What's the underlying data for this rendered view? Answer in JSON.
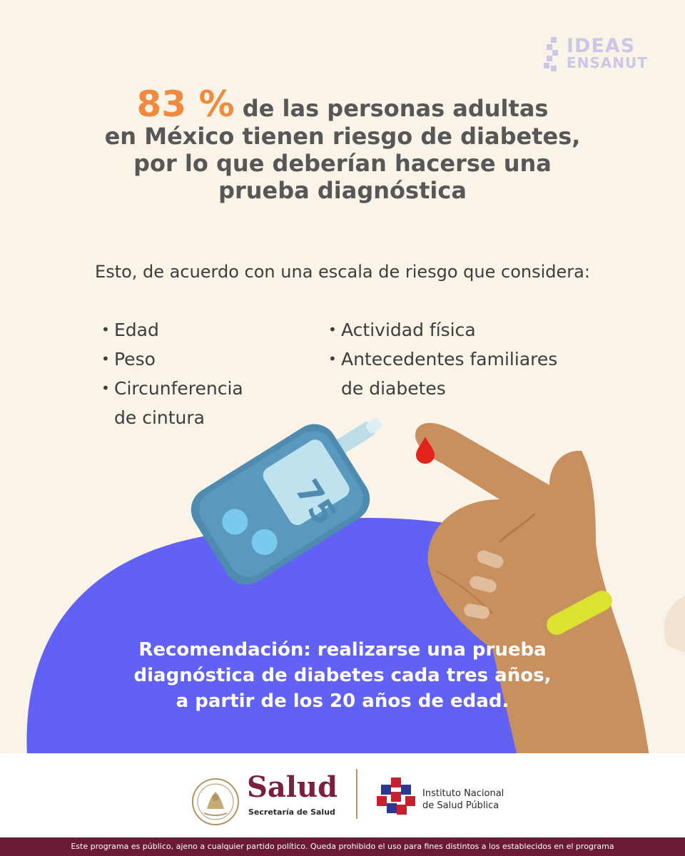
{
  "brand": {
    "line1": "IDEAS",
    "line2": "ENSANUT"
  },
  "headline": {
    "percent": "83 %",
    "line1_rest": " de las personas adultas",
    "line2": "en México tienen riesgo de diabetes,",
    "line3": "por lo que deberían hacerse una",
    "line4": "prueba diagnóstica"
  },
  "intro": "Esto, de acuerdo con una escala de riesgo que considera:",
  "factors_left": [
    {
      "text": "Edad"
    },
    {
      "text": "Peso"
    },
    {
      "line1": "Circunferencia",
      "line2": "de cintura"
    }
  ],
  "factors_right": [
    {
      "text": "Actividad física"
    },
    {
      "line1": "Antecedentes familiares",
      "line2": "de diabetes"
    }
  ],
  "glucometer_reading": "75",
  "recommendation": {
    "line1": "Recomendación: realizarse una prueba",
    "line2": "diagnóstica de diabetes cada tres años,",
    "line3": "a partir de los 20 años de edad."
  },
  "footer": {
    "ministry": "Salud",
    "ministry_sub": "Secretaría de Salud",
    "institute_line1": "Instituto Nacional",
    "institute_line2": "de Salud Pública"
  },
  "legal": "Este programa es público, ajeno a cualquier partido político. Queda prohibido el uso para fines distintos a los establecidos en el programa",
  "colors": {
    "background": "#faf3e8",
    "accent_orange": "#f08a3f",
    "blob_purple": "#6161f5",
    "meter_blue": "#4f8bb0",
    "blood_red": "#e2231a",
    "bracelet": "#dbe22f",
    "salud_maroon": "#7a1f3d"
  }
}
